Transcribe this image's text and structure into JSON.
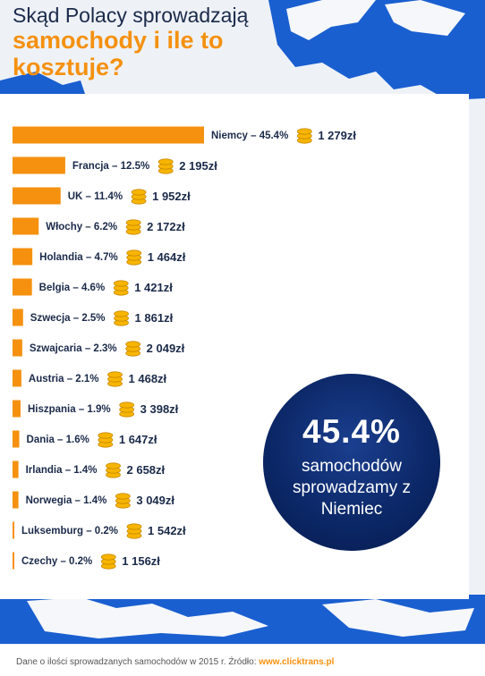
{
  "title": {
    "line1": "Skąd Polacy sprowadzają",
    "line2": "samochody i ile to",
    "line3": "kosztuje?"
  },
  "highlight": {
    "percent": "45.4%",
    "text": "samochodów sprowadzamy z Niemiec"
  },
  "footer": {
    "text": "Dane o ilości sprowadzanych samochodów w 2015 r. Źródło: ",
    "link": "www.clicktrans.pl"
  },
  "colors": {
    "bar": "#f5910f",
    "title_accent": "#f5910f",
    "circle": "#0c2868",
    "coin": "#f7b500",
    "text": "#1b2a4a"
  },
  "icons": {
    "price": "coin-stack-icon"
  },
  "chart_data": {
    "type": "bar",
    "orientation": "horizontal",
    "categories": [
      "Niemcy",
      "Francja",
      "UK",
      "Włochy",
      "Holandia",
      "Belgia",
      "Szwecja",
      "Szwajcaria",
      "Austria",
      "Hiszpania",
      "Dania",
      "Irlandia",
      "Norwegia",
      "Luksemburg",
      "Czechy"
    ],
    "values": [
      45.4,
      12.5,
      11.4,
      6.2,
      4.7,
      4.6,
      2.5,
      2.3,
      2.1,
      1.9,
      1.6,
      1.4,
      1.4,
      0.2,
      0.2
    ],
    "labels": [
      "Niemcy – 45.4%",
      "Francja – 12.5%",
      "UK – 11.4%",
      "Włochy – 6.2%",
      "Holandia – 4.7%",
      "Belgia – 4.6%",
      "Szwecja – 2.5%",
      "Szwajcaria – 2.3%",
      "Austria – 2.1%",
      "Hiszpania – 1.9%",
      "Dania – 1.6%",
      "Irlandia – 1.4%",
      "Norwegia – 1.4%",
      "Luksemburg – 0.2%",
      "Czechy – 0.2%"
    ],
    "prices": [
      "1 279zł",
      "2 195zł",
      "1 952zł",
      "2 172zł",
      "1 464zł",
      "1 421zł",
      "1 861zł",
      "2 049zł",
      "1 468zł",
      "3 398zł",
      "1 647zł",
      "2 658zł",
      "3 049zł",
      "1 542zł",
      "1 156zł"
    ],
    "xlim": [
      0,
      45.4
    ]
  }
}
